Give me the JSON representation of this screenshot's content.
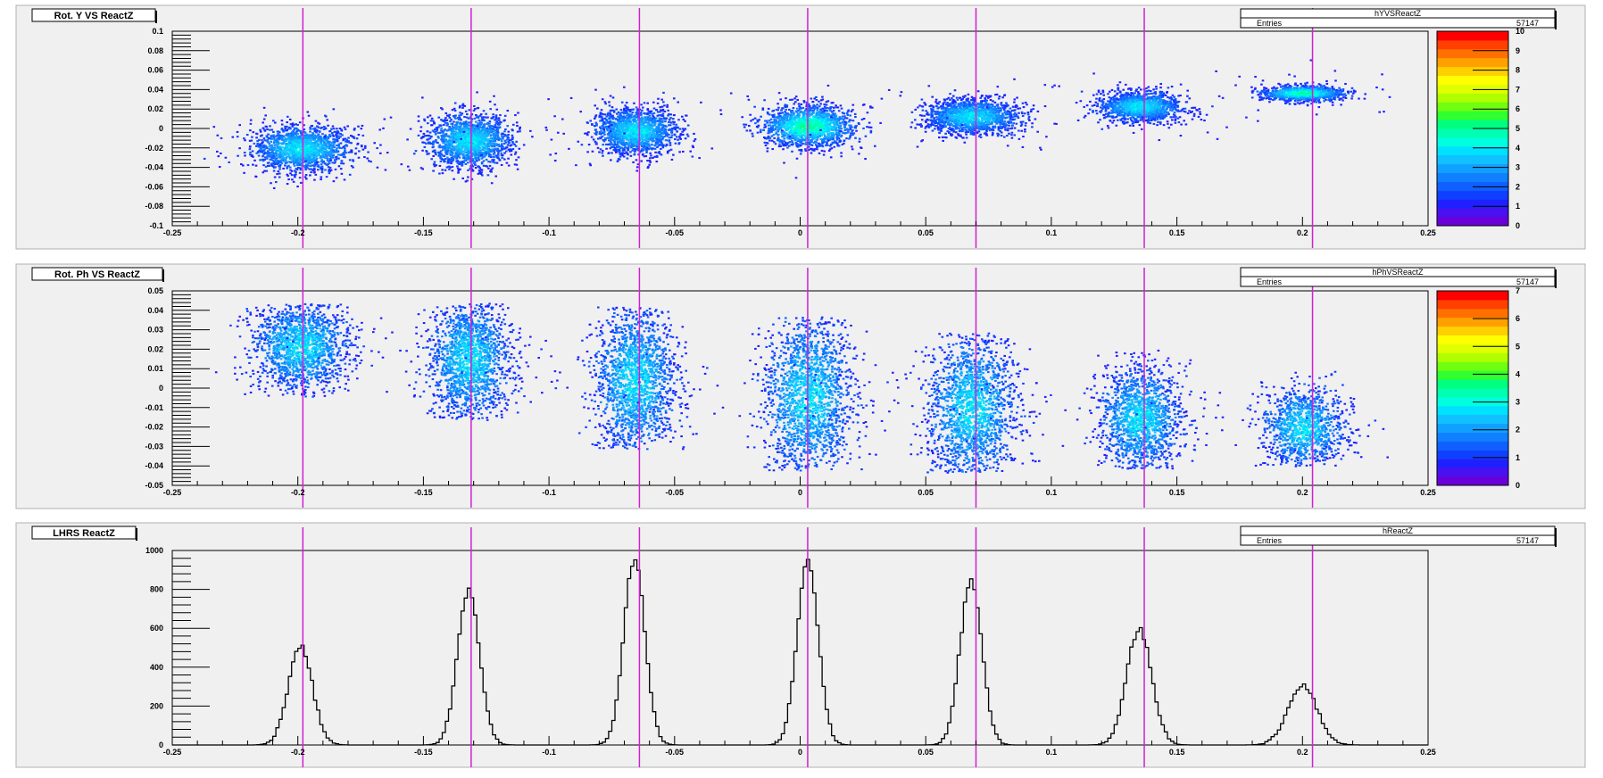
{
  "line_color": "#d020d0",
  "vertical_lines": [
    -0.198,
    -0.131,
    -0.064,
    0.003,
    0.07,
    0.137,
    0.204
  ],
  "colors": {
    "palette": [
      "#6a00d8",
      "#4a10f0",
      "#2020ff",
      "#1040ff",
      "#1060ff",
      "#1080ff",
      "#10a0ff",
      "#10c0ff",
      "#00e0ff",
      "#00ffe0",
      "#00ffb0",
      "#00ff80",
      "#30ff30",
      "#70ff10",
      "#b0ff00",
      "#e0ff00",
      "#ffff00",
      "#ffd000",
      "#ffa000",
      "#ff7000",
      "#ff4000",
      "#ff0000"
    ]
  },
  "chart_data": [
    {
      "type": "heatmap",
      "title": "Rot. Y VS ReactZ",
      "stats": {
        "name": "hYVSReactZ",
        "entries_label": "Entries",
        "entries": "57147"
      },
      "xlim": [
        -0.25,
        0.25
      ],
      "ylim": [
        -0.1,
        0.1
      ],
      "x_ticks": [
        "-0.25",
        "-0.2",
        "-0.15",
        "-0.1",
        "-0.05",
        "0",
        "0.05",
        "0.1",
        "0.15",
        "0.2",
        "0.25"
      ],
      "y_ticks": [
        "-0.1",
        "-0.08",
        "-0.06",
        "-0.04",
        "-0.02",
        "0",
        "0.02",
        "0.04",
        "0.06",
        "0.08",
        "0.1"
      ],
      "z_ticks": [
        "0",
        "1",
        "2",
        "3",
        "4",
        "5",
        "6",
        "7",
        "8",
        "9",
        "10"
      ],
      "zmax": 10,
      "clusters": [
        {
          "x": -0.199,
          "y": -0.02,
          "sx": 0.012,
          "sy": 0.012,
          "n": 1500,
          "peak": 3
        },
        {
          "x": -0.132,
          "y": -0.012,
          "sx": 0.01,
          "sy": 0.014,
          "n": 1500,
          "peak": 3
        },
        {
          "x": -0.066,
          "y": -0.002,
          "sx": 0.01,
          "sy": 0.012,
          "n": 1500,
          "peak": 3
        },
        {
          "x": 0.003,
          "y": 0.003,
          "sx": 0.011,
          "sy": 0.011,
          "n": 1500,
          "peak": 4
        },
        {
          "x": 0.068,
          "y": 0.013,
          "sx": 0.011,
          "sy": 0.009,
          "n": 1500,
          "peak": 3
        },
        {
          "x": 0.135,
          "y": 0.023,
          "sx": 0.01,
          "sy": 0.008,
          "n": 1300,
          "peak": 3
        },
        {
          "x": 0.2,
          "y": 0.037,
          "sx": 0.01,
          "sy": 0.004,
          "n": 1000,
          "peak": 4
        }
      ]
    },
    {
      "type": "heatmap",
      "title": "Rot. Ph VS ReactZ",
      "stats": {
        "name": "hPhVSReactZ",
        "entries_label": "Entries",
        "entries": "57147"
      },
      "xlim": [
        -0.25,
        0.25
      ],
      "ylim": [
        -0.05,
        0.05
      ],
      "x_ticks": [
        "-0.25",
        "-0.2",
        "-0.15",
        "-0.1",
        "-0.05",
        "0",
        "0.05",
        "0.1",
        "0.15",
        "0.2",
        "0.25"
      ],
      "y_ticks": [
        "-0.05",
        "-0.04",
        "-0.03",
        "-0.02",
        "-0.01",
        "0",
        "0.01",
        "0.02",
        "0.03",
        "0.04",
        "0.05"
      ],
      "z_ticks": [
        "0",
        "1",
        "2",
        "3",
        "4",
        "5",
        "6",
        "7"
      ],
      "zmax": 7,
      "clusters": [
        {
          "x": -0.199,
          "y": 0.022,
          "sx": 0.012,
          "sy": 0.012,
          "ymin": -0.004,
          "ymax": 0.044,
          "n": 1600,
          "peak": 2
        },
        {
          "x": -0.132,
          "y": 0.015,
          "sx": 0.01,
          "sy": 0.016,
          "ymin": -0.016,
          "ymax": 0.044,
          "n": 1700,
          "peak": 2
        },
        {
          "x": -0.066,
          "y": 0.004,
          "sx": 0.01,
          "sy": 0.02,
          "ymin": -0.031,
          "ymax": 0.042,
          "n": 1800,
          "peak": 2
        },
        {
          "x": 0.003,
          "y": -0.004,
          "sx": 0.011,
          "sy": 0.022,
          "ymin": -0.042,
          "ymax": 0.037,
          "n": 1900,
          "peak": 2
        },
        {
          "x": 0.068,
          "y": -0.01,
          "sx": 0.011,
          "sy": 0.02,
          "ymin": -0.043,
          "ymax": 0.029,
          "n": 1800,
          "peak": 2
        },
        {
          "x": 0.135,
          "y": -0.015,
          "sx": 0.01,
          "sy": 0.014,
          "ymin": -0.041,
          "ymax": 0.02,
          "n": 1500,
          "peak": 2
        },
        {
          "x": 0.2,
          "y": -0.02,
          "sx": 0.01,
          "sy": 0.011,
          "ymin": -0.04,
          "ymax": 0.01,
          "n": 1100,
          "peak": 2
        }
      ]
    },
    {
      "type": "histogram",
      "title": "LHRS ReactZ",
      "stats": {
        "name": "hReactZ",
        "entries_label": "Entries",
        "entries": "57147"
      },
      "xlim": [
        -0.25,
        0.25
      ],
      "ylim": [
        0,
        1000
      ],
      "x_ticks": [
        "-0.25",
        "-0.2",
        "-0.15",
        "-0.1",
        "-0.05",
        "0",
        "0.05",
        "0.1",
        "0.15",
        "0.2",
        "0.25"
      ],
      "y_ticks": [
        "0",
        "200",
        "400",
        "600",
        "800",
        "1000"
      ],
      "peaks": [
        {
          "x": -0.199,
          "height": 510,
          "sigma": 0.0048
        },
        {
          "x": -0.132,
          "height": 790,
          "sigma": 0.0044
        },
        {
          "x": -0.066,
          "height": 950,
          "sigma": 0.0042
        },
        {
          "x": 0.003,
          "height": 950,
          "sigma": 0.0042
        },
        {
          "x": 0.068,
          "height": 850,
          "sigma": 0.0043
        },
        {
          "x": 0.135,
          "height": 595,
          "sigma": 0.005
        },
        {
          "x": 0.2,
          "height": 310,
          "sigma": 0.0058
        }
      ]
    }
  ]
}
